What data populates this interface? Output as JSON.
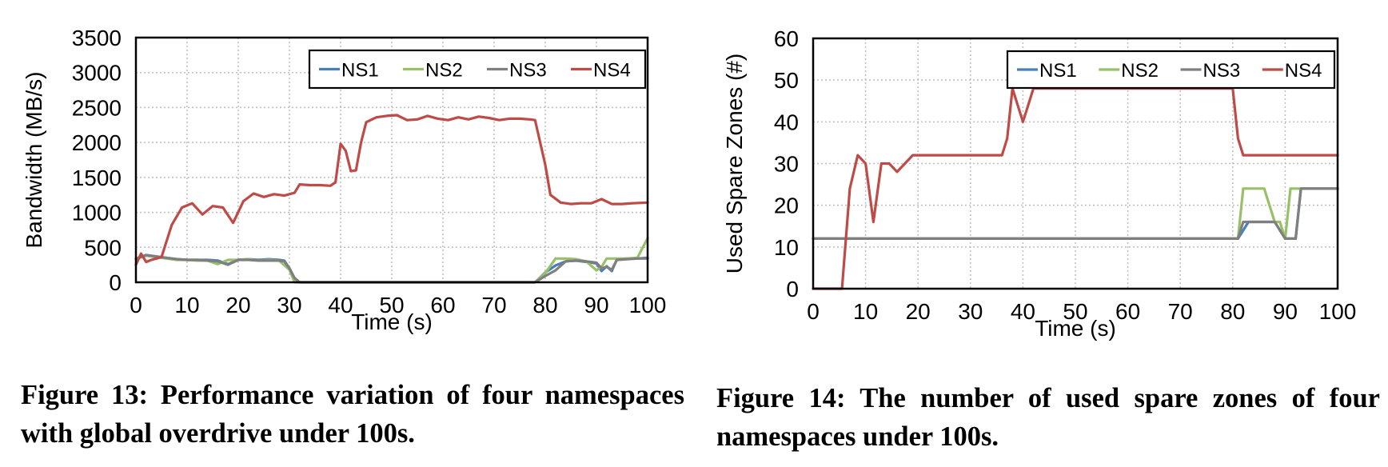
{
  "chart_data": [
    {
      "type": "line",
      "ylabel": "Bandwidth (MB/s)",
      "xlabel": "Time (s)",
      "xlim": [
        0,
        100
      ],
      "ylim": [
        0,
        3500
      ],
      "xticks": [
        0,
        10,
        20,
        30,
        40,
        50,
        60,
        70,
        80,
        90,
        100
      ],
      "yticks": [
        0,
        500,
        1000,
        1500,
        2000,
        2500,
        3000,
        3500
      ],
      "grid": true,
      "legend": "top-right",
      "series": [
        {
          "name": "NS1",
          "color": "#4a7ebb",
          "points": [
            [
              0,
              340
            ],
            [
              2,
              390
            ],
            [
              4,
              370
            ],
            [
              6,
              350
            ],
            [
              8,
              330
            ],
            [
              10,
              320
            ],
            [
              12,
              320
            ],
            [
              14,
              320
            ],
            [
              16,
              310
            ],
            [
              18,
              260
            ],
            [
              20,
              320
            ],
            [
              22,
              330
            ],
            [
              24,
              320
            ],
            [
              26,
              330
            ],
            [
              28,
              320
            ],
            [
              29,
              310
            ],
            [
              30,
              200
            ],
            [
              31,
              60
            ],
            [
              32,
              0
            ],
            [
              78,
              0
            ],
            [
              80,
              140
            ],
            [
              82,
              240
            ],
            [
              84,
              300
            ],
            [
              86,
              310
            ],
            [
              88,
              290
            ],
            [
              90,
              270
            ],
            [
              91,
              160
            ],
            [
              92,
              230
            ],
            [
              93,
              160
            ],
            [
              94,
              330
            ],
            [
              96,
              340
            ],
            [
              98,
              340
            ],
            [
              100,
              350
            ]
          ]
        },
        {
          "name": "NS2",
          "color": "#98c069",
          "points": [
            [
              0,
              340
            ],
            [
              2,
              380
            ],
            [
              4,
              360
            ],
            [
              6,
              340
            ],
            [
              8,
              320
            ],
            [
              10,
              320
            ],
            [
              12,
              310
            ],
            [
              14,
              310
            ],
            [
              16,
              260
            ],
            [
              18,
              320
            ],
            [
              20,
              320
            ],
            [
              22,
              330
            ],
            [
              24,
              310
            ],
            [
              26,
              320
            ],
            [
              28,
              310
            ],
            [
              30,
              180
            ],
            [
              31,
              0
            ],
            [
              78,
              0
            ],
            [
              80,
              130
            ],
            [
              82,
              340
            ],
            [
              84,
              340
            ],
            [
              86,
              330
            ],
            [
              88,
              300
            ],
            [
              90,
              170
            ],
            [
              91,
              220
            ],
            [
              92,
              340
            ],
            [
              94,
              340
            ],
            [
              96,
              340
            ],
            [
              98,
              350
            ],
            [
              100,
              630
            ]
          ]
        },
        {
          "name": "NS3",
          "color": "#7f7f7f",
          "points": [
            [
              0,
              330
            ],
            [
              2,
              390
            ],
            [
              4,
              370
            ],
            [
              6,
              350
            ],
            [
              8,
              330
            ],
            [
              10,
              320
            ],
            [
              12,
              320
            ],
            [
              14,
              310
            ],
            [
              16,
              300
            ],
            [
              18,
              250
            ],
            [
              20,
              320
            ],
            [
              22,
              320
            ],
            [
              24,
              310
            ],
            [
              26,
              310
            ],
            [
              28,
              310
            ],
            [
              29,
              300
            ],
            [
              30,
              200
            ],
            [
              31,
              60
            ],
            [
              32,
              0
            ],
            [
              78,
              0
            ],
            [
              80,
              90
            ],
            [
              82,
              170
            ],
            [
              84,
              300
            ],
            [
              86,
              310
            ],
            [
              88,
              300
            ],
            [
              90,
              280
            ],
            [
              91,
              200
            ],
            [
              92,
              220
            ],
            [
              93,
              180
            ],
            [
              94,
              320
            ],
            [
              96,
              330
            ],
            [
              98,
              340
            ],
            [
              100,
              340
            ]
          ]
        },
        {
          "name": "NS4",
          "color": "#be4b48",
          "points": [
            [
              0,
              250
            ],
            [
              1,
              410
            ],
            [
              2,
              290
            ],
            [
              3,
              320
            ],
            [
              4,
              340
            ],
            [
              5,
              360
            ],
            [
              7,
              820
            ],
            [
              9,
              1070
            ],
            [
              11,
              1130
            ],
            [
              13,
              970
            ],
            [
              15,
              1090
            ],
            [
              17,
              1070
            ],
            [
              19,
              850
            ],
            [
              21,
              1160
            ],
            [
              23,
              1270
            ],
            [
              25,
              1220
            ],
            [
              27,
              1260
            ],
            [
              29,
              1240
            ],
            [
              31,
              1280
            ],
            [
              32,
              1400
            ],
            [
              34,
              1390
            ],
            [
              36,
              1390
            ],
            [
              38,
              1380
            ],
            [
              39,
              1430
            ],
            [
              40,
              1980
            ],
            [
              41,
              1880
            ],
            [
              42,
              1590
            ],
            [
              43,
              1600
            ],
            [
              44,
              2000
            ],
            [
              45,
              2290
            ],
            [
              47,
              2360
            ],
            [
              49,
              2380
            ],
            [
              51,
              2390
            ],
            [
              53,
              2320
            ],
            [
              55,
              2330
            ],
            [
              57,
              2380
            ],
            [
              59,
              2340
            ],
            [
              61,
              2320
            ],
            [
              63,
              2360
            ],
            [
              65,
              2330
            ],
            [
              67,
              2370
            ],
            [
              69,
              2350
            ],
            [
              71,
              2320
            ],
            [
              73,
              2340
            ],
            [
              75,
              2340
            ],
            [
              77,
              2330
            ],
            [
              78,
              2320
            ],
            [
              80,
              1680
            ],
            [
              81,
              1250
            ],
            [
              83,
              1140
            ],
            [
              85,
              1120
            ],
            [
              87,
              1130
            ],
            [
              89,
              1130
            ],
            [
              91,
              1190
            ],
            [
              93,
              1120
            ],
            [
              95,
              1120
            ],
            [
              97,
              1130
            ],
            [
              100,
              1140
            ]
          ]
        }
      ]
    },
    {
      "type": "line",
      "ylabel": "Used Spare Zones (#)",
      "xlabel": "Time (s)",
      "xlim": [
        0,
        100
      ],
      "ylim": [
        0,
        60
      ],
      "xticks": [
        0,
        10,
        20,
        30,
        40,
        50,
        60,
        70,
        80,
        90,
        100
      ],
      "yticks": [
        0,
        10,
        20,
        30,
        40,
        50,
        60
      ],
      "grid": true,
      "legend": "top-right",
      "series": [
        {
          "name": "NS1",
          "color": "#4a7ebb",
          "points": [
            [
              0,
              12
            ],
            [
              81,
              12
            ],
            [
              83,
              16
            ],
            [
              87,
              16
            ],
            [
              88,
              16
            ],
            [
              90,
              12
            ],
            [
              91,
              12
            ],
            [
              92,
              12
            ],
            [
              93,
              24
            ],
            [
              100,
              24
            ]
          ]
        },
        {
          "name": "NS2",
          "color": "#98c069",
          "points": [
            [
              0,
              12
            ],
            [
              81,
              12
            ],
            [
              82,
              24
            ],
            [
              86,
              24
            ],
            [
              88,
              16
            ],
            [
              89,
              16
            ],
            [
              90,
              12
            ],
            [
              91,
              24
            ],
            [
              100,
              24
            ]
          ]
        },
        {
          "name": "NS3",
          "color": "#7f7f7f",
          "points": [
            [
              0,
              12
            ],
            [
              81,
              12
            ],
            [
              82,
              16
            ],
            [
              86,
              16
            ],
            [
              88,
              16
            ],
            [
              90,
              12
            ],
            [
              92,
              12
            ],
            [
              93,
              24
            ],
            [
              100,
              24
            ]
          ]
        },
        {
          "name": "NS4",
          "color": "#be4b48",
          "points": [
            [
              0,
              0
            ],
            [
              5.5,
              0
            ],
            [
              7,
              24
            ],
            [
              8.5,
              32
            ],
            [
              10,
              30
            ],
            [
              11.5,
              16
            ],
            [
              13,
              30
            ],
            [
              14.5,
              30
            ],
            [
              16,
              28
            ],
            [
              17.5,
              30
            ],
            [
              19,
              32
            ],
            [
              36,
              32
            ],
            [
              37,
              36
            ],
            [
              38,
              48
            ],
            [
              40,
              40
            ],
            [
              41,
              44
            ],
            [
              42,
              48
            ],
            [
              75,
              48
            ],
            [
              80,
              48
            ],
            [
              81,
              36
            ],
            [
              82,
              32
            ],
            [
              100,
              32
            ]
          ]
        }
      ]
    }
  ],
  "captions": [
    "Figure 13: Performance variation of four namespaces with global overdrive under 100s.",
    "Figure 14: The number of used spare zones of four namespaces under 100s."
  ]
}
